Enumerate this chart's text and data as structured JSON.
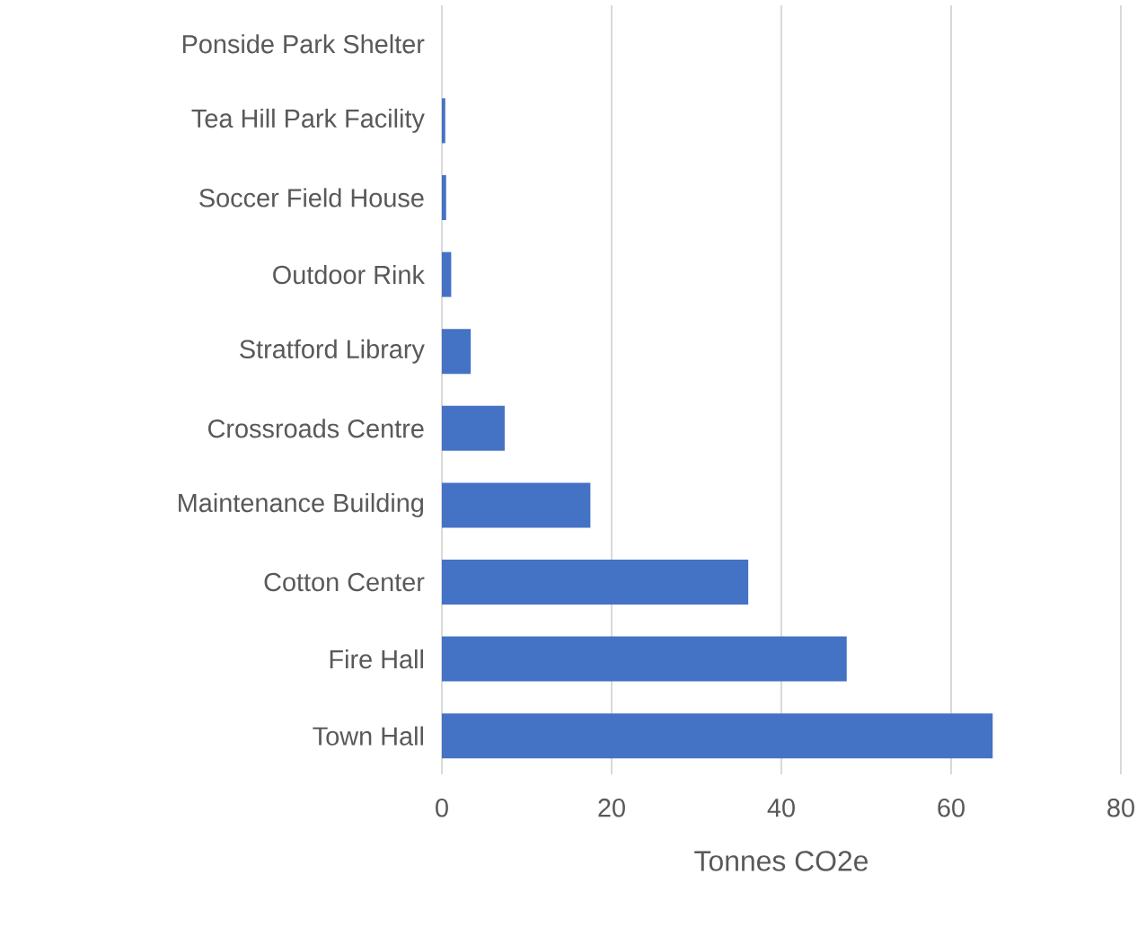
{
  "chart_data": {
    "type": "bar",
    "orientation": "horizontal",
    "xlabel": "Tonnes CO2e",
    "categories": [
      "Ponside Park Shelter",
      "Tea Hill Park Facility",
      "Soccer Field House",
      "Outdoor Rink",
      "Stratford Library",
      "Crossroads Centre",
      "Maintenance Building",
      "Cotton Center",
      "Fire Hall",
      "Town Hall"
    ],
    "values": [
      0,
      0.4,
      0.5,
      1.1,
      3.4,
      7.4,
      17.5,
      36.1,
      47.7,
      64.9
    ],
    "color": "#4472c4",
    "xlim": [
      0,
      80
    ],
    "xticks": [
      0,
      20,
      40,
      60,
      80
    ],
    "grid": "x"
  }
}
